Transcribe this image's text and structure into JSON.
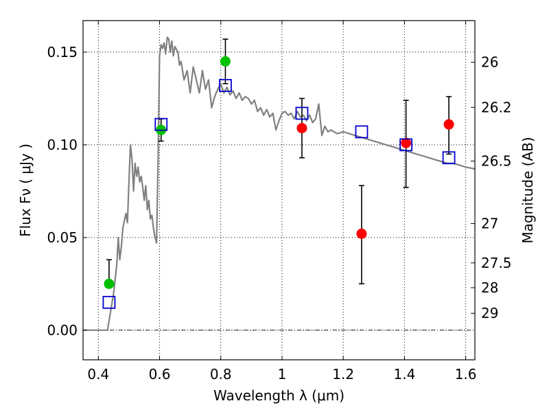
{
  "chart_data": {
    "type": "scatter",
    "xlabel": "Wavelength  λ (μm)",
    "ylabel": "Flux  Fν  ( μJy )",
    "y2label": "Magnitude (AB)",
    "xlim": [
      0.35,
      1.63
    ],
    "ylim": [
      -0.016,
      0.167
    ],
    "xticks": [
      0.4,
      0.6,
      0.8,
      1.0,
      1.2,
      1.4,
      1.6
    ],
    "xtick_labels": [
      "0.4",
      "0.6",
      "0.8",
      "1",
      "1.2",
      "1.4",
      "1.6"
    ],
    "yticks": [
      0.0,
      0.05,
      0.1,
      0.15
    ],
    "ytick_labels": [
      "0.00",
      "0.05",
      "0.10",
      "0.15"
    ],
    "magnitude_ticks": [
      {
        "label": "26",
        "flux": 0.1445
      },
      {
        "label": "26.2",
        "flux": 0.1202
      },
      {
        "label": "26.5",
        "flux": 0.0912
      },
      {
        "label": "27",
        "flux": 0.0575
      },
      {
        "label": "27.5",
        "flux": 0.0363
      },
      {
        "label": "28",
        "flux": 0.0229
      },
      {
        "label": "29",
        "flux": 0.0091
      }
    ],
    "grid": true,
    "colors": {
      "model": "#808080",
      "green": "#00c000",
      "red": "#ff0000",
      "box": "#0000cc"
    },
    "model_spectrum": {
      "x": [
        0.35,
        0.43,
        0.435,
        0.44,
        0.45,
        0.46,
        0.465,
        0.47,
        0.475,
        0.48,
        0.49,
        0.495,
        0.5,
        0.505,
        0.51,
        0.515,
        0.52,
        0.525,
        0.53,
        0.535,
        0.54,
        0.545,
        0.55,
        0.555,
        0.56,
        0.565,
        0.57,
        0.575,
        0.58,
        0.585,
        0.59,
        0.595,
        0.6,
        0.605,
        0.61,
        0.615,
        0.62,
        0.625,
        0.63,
        0.635,
        0.64,
        0.645,
        0.65,
        0.66,
        0.665,
        0.67,
        0.68,
        0.69,
        0.7,
        0.71,
        0.72,
        0.73,
        0.74,
        0.75,
        0.76,
        0.77,
        0.78,
        0.79,
        0.8,
        0.81,
        0.82,
        0.83,
        0.84,
        0.85,
        0.86,
        0.87,
        0.88,
        0.89,
        0.9,
        0.91,
        0.92,
        0.93,
        0.94,
        0.95,
        0.96,
        0.97,
        0.98,
        0.99,
        1.0,
        1.01,
        1.02,
        1.03,
        1.04,
        1.05,
        1.06,
        1.07,
        1.08,
        1.09,
        1.1,
        1.11,
        1.12,
        1.13,
        1.14,
        1.15,
        1.16,
        1.18,
        1.2,
        1.22,
        1.24,
        1.26,
        1.28,
        1.3,
        1.32,
        1.34,
        1.36,
        1.38,
        1.4,
        1.42,
        1.44,
        1.46,
        1.48,
        1.5,
        1.52,
        1.54,
        1.56,
        1.58,
        1.6,
        1.63
      ],
      "y": [
        0.0,
        0.0,
        0.005,
        0.01,
        0.02,
        0.035,
        0.05,
        0.038,
        0.045,
        0.055,
        0.063,
        0.058,
        0.08,
        0.1,
        0.092,
        0.075,
        0.09,
        0.083,
        0.088,
        0.08,
        0.083,
        0.077,
        0.07,
        0.078,
        0.065,
        0.07,
        0.06,
        0.062,
        0.055,
        0.05,
        0.047,
        0.09,
        0.148,
        0.154,
        0.152,
        0.155,
        0.149,
        0.158,
        0.157,
        0.15,
        0.156,
        0.148,
        0.153,
        0.15,
        0.143,
        0.145,
        0.135,
        0.14,
        0.128,
        0.142,
        0.135,
        0.128,
        0.14,
        0.13,
        0.135,
        0.12,
        0.126,
        0.13,
        0.133,
        0.128,
        0.131,
        0.127,
        0.129,
        0.125,
        0.128,
        0.124,
        0.126,
        0.125,
        0.122,
        0.124,
        0.118,
        0.12,
        0.116,
        0.119,
        0.115,
        0.117,
        0.108,
        0.113,
        0.117,
        0.118,
        0.116,
        0.117,
        0.114,
        0.118,
        0.115,
        0.116,
        0.113,
        0.116,
        0.112,
        0.114,
        0.122,
        0.105,
        0.11,
        0.107,
        0.108,
        0.106,
        0.107,
        0.106,
        0.105,
        0.104,
        0.103,
        0.102,
        0.101,
        0.1,
        0.099,
        0.098,
        0.097,
        0.096,
        0.095,
        0.094,
        0.093,
        0.092,
        0.091,
        0.09,
        0.09,
        0.089,
        0.088,
        0.087
      ]
    },
    "series": [
      {
        "marker": "circle",
        "color": "#00c000",
        "points": [
          {
            "x": 0.435,
            "y": 0.025,
            "yerr_low": 0.025,
            "yerr_high": 0.038
          },
          {
            "x": 0.605,
            "y": 0.108,
            "yerr_low": 0.102,
            "yerr_high": 0.114
          },
          {
            "x": 0.815,
            "y": 0.145,
            "yerr_low": 0.133,
            "yerr_high": 0.157
          }
        ]
      },
      {
        "marker": "circle",
        "color": "#ff0000",
        "points": [
          {
            "x": 1.065,
            "y": 0.109,
            "yerr_low": 0.093,
            "yerr_high": 0.125
          },
          {
            "x": 1.26,
            "y": 0.052,
            "yerr_low": 0.025,
            "yerr_high": 0.078
          },
          {
            "x": 1.405,
            "y": 0.101,
            "yerr_low": 0.077,
            "yerr_high": 0.124
          },
          {
            "x": 1.545,
            "y": 0.111,
            "yerr_low": 0.095,
            "yerr_high": 0.126
          }
        ]
      },
      {
        "marker": "square",
        "color": "#0000cc",
        "points": [
          {
            "x": 0.435,
            "y": 0.015
          },
          {
            "x": 0.605,
            "y": 0.111
          },
          {
            "x": 0.815,
            "y": 0.132
          },
          {
            "x": 1.065,
            "y": 0.117
          },
          {
            "x": 1.26,
            "y": 0.107
          },
          {
            "x": 1.405,
            "y": 0.1
          },
          {
            "x": 1.545,
            "y": 0.093
          }
        ]
      }
    ]
  }
}
